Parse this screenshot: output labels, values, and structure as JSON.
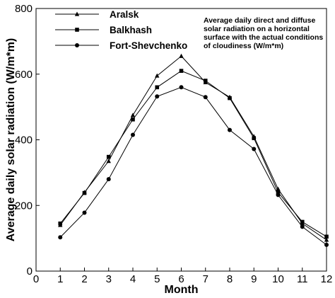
{
  "chart_data": {
    "type": "line",
    "xlabel": "Month",
    "ylabel": "Average daily solar radiation (W/m*m)",
    "xlim": [
      0,
      12
    ],
    "ylim": [
      0,
      800
    ],
    "xticks": [
      0,
      1,
      2,
      3,
      4,
      5,
      6,
      7,
      8,
      9,
      10,
      11,
      12
    ],
    "yticks": [
      0,
      200,
      400,
      600,
      800
    ],
    "grid": false,
    "legend_position": "top-left",
    "annotation": [
      "Average daily direct and diffuse",
      "solar radiation on a horizontal",
      "surface with the actual conditions",
      "of cloudiness (W/m*m)"
    ],
    "x": [
      1,
      2,
      3,
      4,
      5,
      6,
      7,
      8,
      9,
      10,
      11,
      12
    ],
    "series": [
      {
        "name": "Aralsk",
        "marker": "triangle",
        "values": [
          140,
          240,
          335,
          475,
          595,
          655,
          575,
          530,
          410,
          250,
          145,
          95
        ]
      },
      {
        "name": "Balkhash",
        "marker": "square",
        "values": [
          145,
          238,
          348,
          462,
          560,
          610,
          580,
          527,
          405,
          240,
          150,
          105
        ]
      },
      {
        "name": "Fort-Shevchenko",
        "marker": "circle",
        "values": [
          103,
          178,
          280,
          415,
          532,
          560,
          530,
          430,
          372,
          232,
          135,
          80
        ]
      }
    ]
  }
}
